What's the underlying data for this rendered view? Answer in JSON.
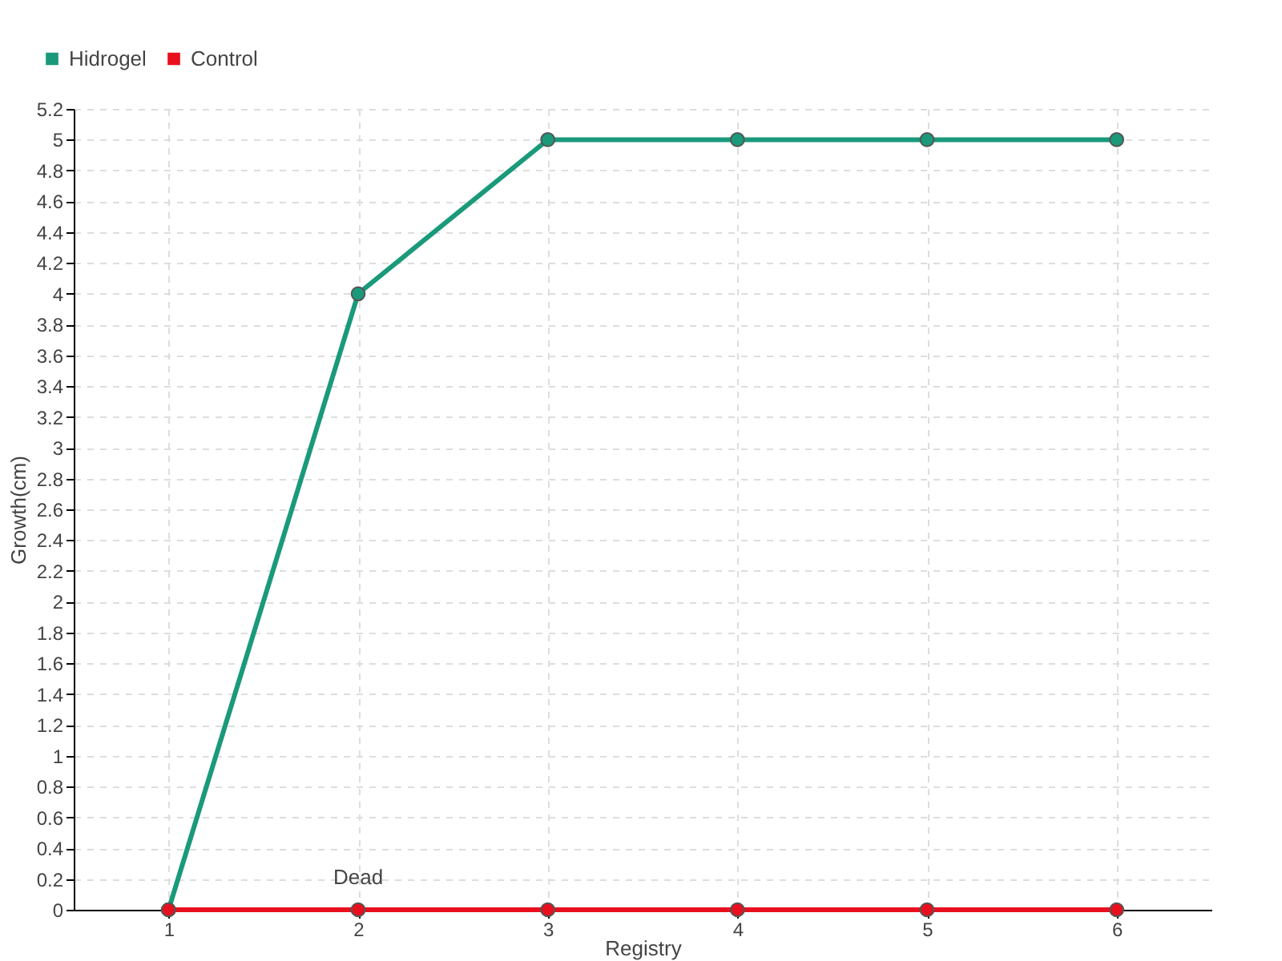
{
  "chart_data": {
    "type": "line",
    "xlabel": "Registry",
    "ylabel": "Growth(cm)",
    "x": [
      1,
      2,
      3,
      4,
      5,
      6
    ],
    "series": [
      {
        "name": "Hidrogel",
        "color": "#1a9a7a",
        "values": [
          0,
          4,
          5,
          5,
          5,
          5
        ]
      },
      {
        "name": "Control",
        "color": "#e8101e",
        "values": [
          0,
          0,
          0,
          0,
          0,
          0
        ]
      }
    ],
    "xlim": [
      0.5,
      6.5
    ],
    "xticks": [
      1,
      2,
      3,
      4,
      5,
      6
    ],
    "ylim": [
      0,
      5.2
    ],
    "yticks": [
      0,
      0.2,
      0.4,
      0.6,
      0.8,
      1,
      1.2,
      1.4,
      1.6,
      1.8,
      2,
      2.2,
      2.4,
      2.6,
      2.8,
      3,
      3.2,
      3.4,
      3.6,
      3.8,
      4,
      4.2,
      4.4,
      4.6,
      4.8,
      5,
      5.2
    ],
    "grid": true,
    "legend": "top left",
    "marker": "circle",
    "line_style": "solid",
    "annotations": [
      {
        "text": "Dead",
        "x": 2,
        "y": 0
      }
    ]
  }
}
